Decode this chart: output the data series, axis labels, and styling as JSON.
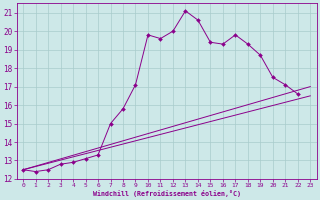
{
  "xlabel": "Windchill (Refroidissement éolien,°C)",
  "xlim": [
    -0.5,
    23.5
  ],
  "ylim": [
    12,
    21.5
  ],
  "yticks": [
    12,
    13,
    14,
    15,
    16,
    17,
    18,
    19,
    20,
    21
  ],
  "xticks": [
    0,
    1,
    2,
    3,
    4,
    5,
    6,
    7,
    8,
    9,
    10,
    11,
    12,
    13,
    14,
    15,
    16,
    17,
    18,
    19,
    20,
    21,
    22,
    23
  ],
  "bg_color": "#cde8e8",
  "grid_color": "#a8cccc",
  "line_color": "#8b008b",
  "line1_x": [
    0,
    1,
    2,
    3,
    4,
    5,
    6,
    7,
    8,
    9,
    10,
    11,
    12,
    13,
    14,
    15,
    16,
    17,
    18,
    19,
    20,
    21,
    22
  ],
  "line1_y": [
    12.5,
    12.4,
    12.5,
    12.8,
    12.9,
    13.1,
    13.3,
    15.0,
    15.8,
    17.1,
    19.8,
    19.6,
    20.0,
    21.1,
    20.6,
    19.4,
    19.3,
    19.8,
    19.3,
    18.7,
    17.5,
    17.1,
    16.6
  ],
  "line2_x": [
    0,
    23
  ],
  "line2_y": [
    12.5,
    17.0
  ],
  "line3_x": [
    0,
    23
  ],
  "line3_y": [
    12.5,
    16.5
  ]
}
